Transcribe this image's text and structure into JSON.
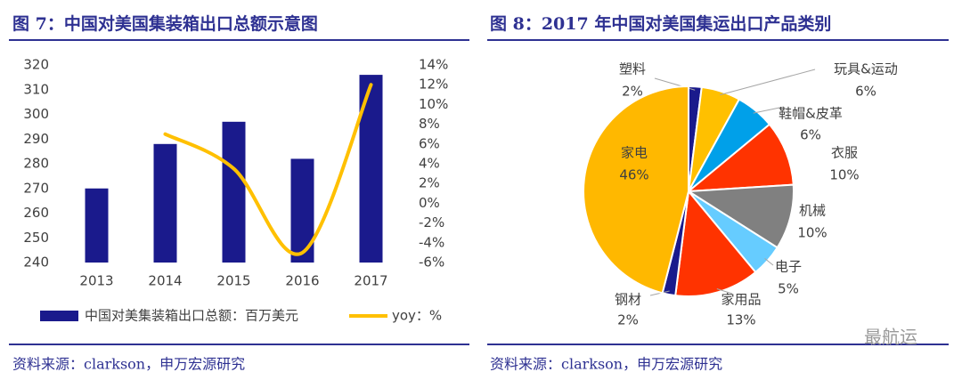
{
  "chart_data": [
    {
      "type": "bar",
      "title": "图 7：中国对美国集装箱出口总额示意图",
      "source": "资料来源：clarkson，申万宏源研究",
      "categories": [
        "2013",
        "2014",
        "2015",
        "2016",
        "2017"
      ],
      "series": [
        {
          "name": "中国对美集装箱出口总额：百万美元",
          "color": "#1a1a8c",
          "values": [
            270,
            288,
            297,
            282,
            316
          ]
        },
        {
          "name": "yoy：%",
          "color": "#ffc000",
          "type": "line",
          "axis": "y2",
          "values": [
            null,
            7,
            3.5,
            -5,
            12
          ]
        }
      ],
      "ylim": [
        240,
        320
      ],
      "yticks": [
        240,
        250,
        260,
        270,
        280,
        290,
        300,
        310,
        320
      ],
      "y2lim": [
        -6,
        14
      ],
      "y2ticks": [
        {
          "value": -6,
          "label": "-6%"
        },
        {
          "value": -4,
          "label": "-4%"
        },
        {
          "value": -2,
          "label": "-2%"
        },
        {
          "value": 0,
          "label": "0%"
        },
        {
          "value": 2,
          "label": "2%"
        },
        {
          "value": 4,
          "label": "4%"
        },
        {
          "value": 6,
          "label": "6%"
        },
        {
          "value": 8,
          "label": "8%"
        },
        {
          "value": 10,
          "label": "10%"
        },
        {
          "value": 12,
          "label": "12%"
        },
        {
          "value": 14,
          "label": "14%"
        }
      ],
      "legend": "bottom"
    },
    {
      "type": "pie",
      "title": "图 8：2017 年中国对美国集运出口产品类别",
      "source": "资料来源：clarkson，申万宏源研究",
      "categories": [
        "塑料",
        "玩具&运动",
        "鞋帽&皮革",
        "衣服",
        "机械",
        "电子",
        "家用品",
        "钢材",
        "家电"
      ],
      "values": [
        2,
        6,
        6,
        10,
        10,
        5,
        13,
        2,
        46
      ],
      "value_labels": [
        "2%",
        "6%",
        "6%",
        "10%",
        "10%",
        "5%",
        "13%",
        "2%",
        "46%"
      ],
      "colors": [
        "#1a1a8c",
        "#ffc000",
        "#00a0e9",
        "#ff3300",
        "#808080",
        "#66ccff",
        "#ff3300",
        "#1a1a8c",
        "#ffb800"
      ]
    }
  ],
  "watermark": "最航运"
}
